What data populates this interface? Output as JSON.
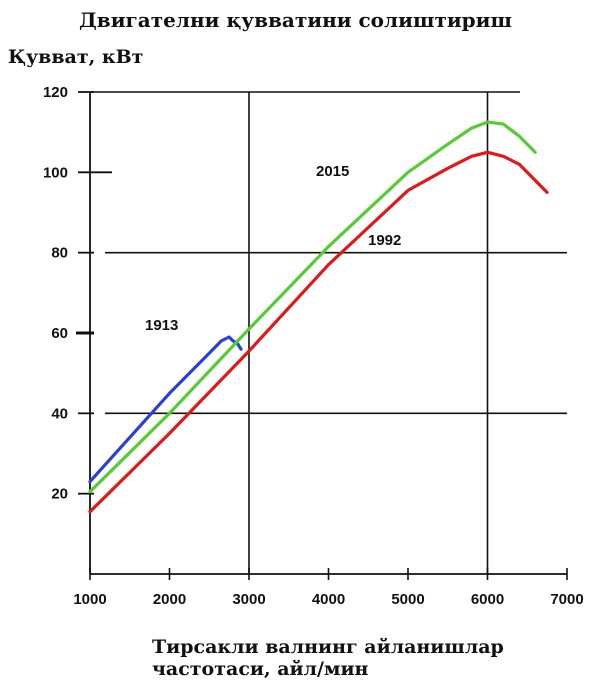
{
  "title": "Двигателни қувватини солиштириш",
  "chart_data": {
    "type": "line",
    "title": "Двигателни қувватини солиштириш",
    "ylabel": "Қувват, кВт",
    "xlabel_lines": [
      "Тирсакли валнинг айланишлар",
      "частотаси, айл/мин"
    ],
    "xlim": [
      1000,
      7000
    ],
    "ylim": [
      0,
      120
    ],
    "x_ticks": [
      1000,
      2000,
      3000,
      4000,
      5000,
      6000,
      7000
    ],
    "y_ticks": [
      20,
      40,
      60,
      80,
      100,
      120
    ],
    "grid": true,
    "series": [
      {
        "name": "1913",
        "color": "#2a3fd6",
        "x": [
          1000,
          1500,
          2000,
          2500,
          2650,
          2750,
          2800,
          2850,
          2900
        ],
        "y": [
          23,
          34,
          45,
          55,
          58,
          59,
          58,
          57.5,
          56
        ]
      },
      {
        "name": "2015",
        "color": "#55cc33",
        "x": [
          1000,
          2000,
          3000,
          4000,
          5000,
          5500,
          5800,
          6000,
          6200,
          6400,
          6600
        ],
        "y": [
          20.5,
          40,
          61,
          81.5,
          100,
          107,
          111,
          112.5,
          112,
          109,
          105
        ]
      },
      {
        "name": "1992",
        "color": "#e01818",
        "x": [
          1000,
          2000,
          3000,
          4000,
          5000,
          5500,
          5800,
          6000,
          6200,
          6400,
          6600,
          6750
        ],
        "y": [
          15.5,
          35,
          55.5,
          77,
          95.5,
          101,
          104,
          105,
          104,
          102,
          98,
          95
        ]
      }
    ]
  }
}
